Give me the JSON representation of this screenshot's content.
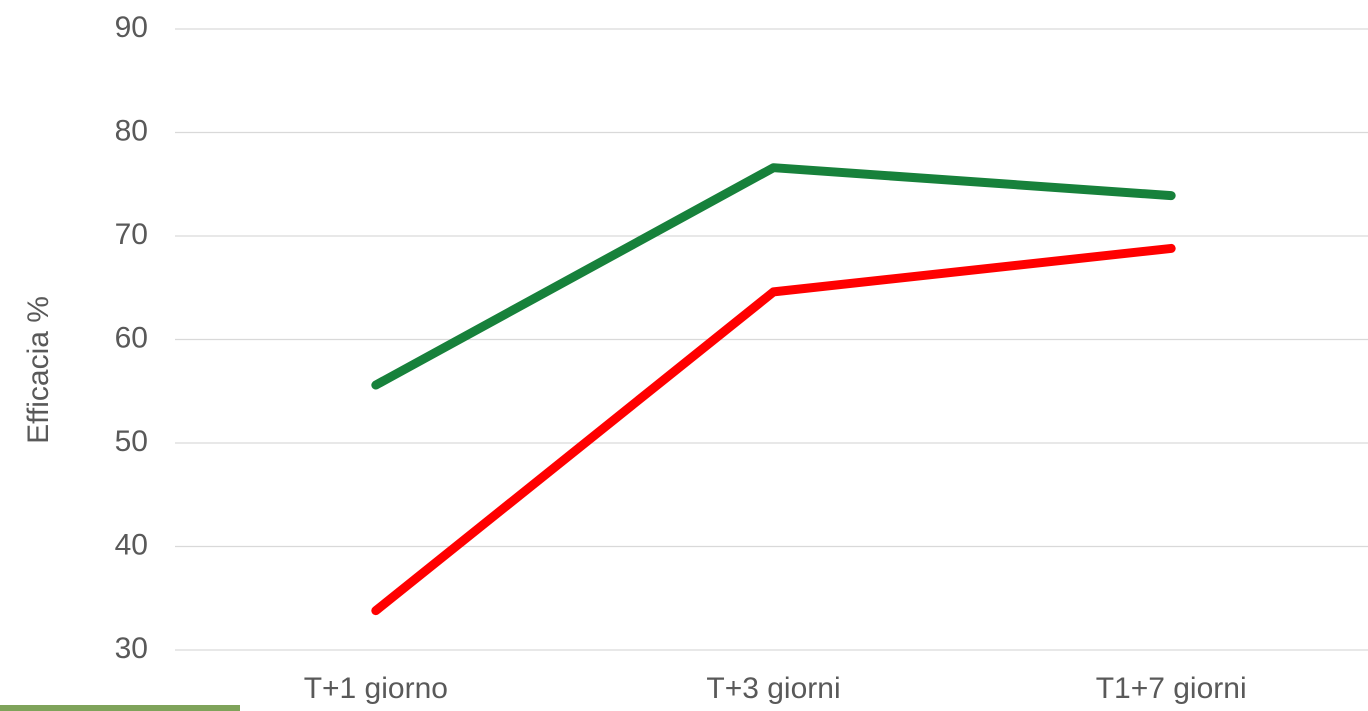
{
  "chart_data": {
    "type": "line",
    "y_label": "Efficacia %",
    "categories": [
      "T+1 giorno",
      "T+3 giorni",
      "T1+7 giorni"
    ],
    "series": [
      {
        "color": "#17813b",
        "values": [
          55.6,
          76.6,
          73.9
        ]
      },
      {
        "color": "#ff0000",
        "values": [
          33.8,
          64.6,
          68.8
        ]
      }
    ],
    "ylim": [
      30,
      90
    ],
    "yticks": [
      30,
      40,
      50,
      60,
      70,
      80,
      90
    ],
    "grid": true
  }
}
